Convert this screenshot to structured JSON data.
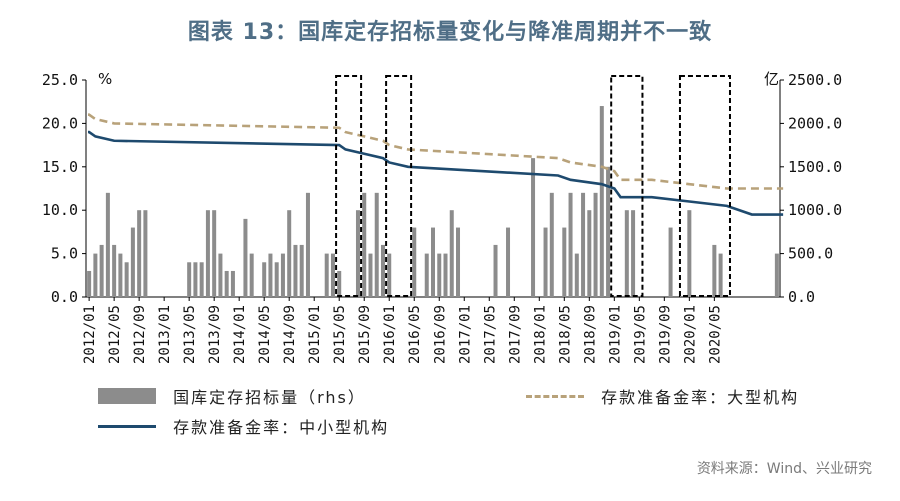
{
  "title": "图表 13：国库定存招标量变化与降准周期并不一致",
  "source": "资料来源：Wind、兴业研究",
  "chart_data": {
    "type": "bar",
    "left_unit": "%",
    "right_unit": "亿",
    "left_ylim": [
      0,
      25
    ],
    "right_ylim": [
      0,
      2500
    ],
    "left_ticks": [
      "0.0",
      "5.0",
      "10.0",
      "15.0",
      "20.0",
      "25.0"
    ],
    "right_ticks": [
      "0.0",
      "500.0",
      "1000.0",
      "1500.0",
      "2000.0",
      "2500.0"
    ],
    "x_tick_labels": [
      "2012/01",
      "2012/05",
      "2012/09",
      "2013/01",
      "2013/05",
      "2013/09",
      "2014/01",
      "2014/05",
      "2014/09",
      "2015/01",
      "2015/05",
      "2015/09",
      "2016/01",
      "2016/05",
      "2016/09",
      "2017/01",
      "2017/05",
      "2017/09",
      "2018/01",
      "2018/05",
      "2018/09",
      "2019/01",
      "2019/05",
      "2019/09",
      "2020/01",
      "2020/05"
    ],
    "months_start": "2012/01",
    "bars": {
      "name": "国库定存招标量（rhs）",
      "color": "#8c8c8c",
      "values": [
        300,
        500,
        600,
        1200,
        600,
        500,
        400,
        800,
        1000,
        1000,
        0,
        0,
        0,
        0,
        0,
        0,
        400,
        400,
        400,
        1000,
        1000,
        500,
        300,
        300,
        0,
        900,
        500,
        0,
        400,
        500,
        400,
        500,
        1000,
        600,
        600,
        1200,
        0,
        0,
        500,
        500,
        300,
        0,
        0,
        1000,
        1200,
        500,
        1200,
        600,
        500,
        0,
        0,
        0,
        800,
        0,
        500,
        800,
        500,
        500,
        1000,
        800,
        0,
        0,
        0,
        0,
        0,
        600,
        0,
        800,
        0,
        0,
        0,
        1600,
        0,
        800,
        1200,
        0,
        800,
        1200,
        500,
        1200,
        1000,
        1200,
        2200,
        1500,
        0,
        0,
        1000,
        1000,
        0,
        0,
        0,
        0,
        0,
        800,
        0,
        0,
        1000,
        0,
        0,
        0,
        600,
        500,
        0,
        0,
        0,
        0,
        0,
        0,
        0,
        0,
        500
      ]
    },
    "series": [
      {
        "name": "存款准备金率：大型机构",
        "color": "#b8a27a",
        "dashed": true,
        "steps": [
          [
            0,
            21.0
          ],
          [
            1,
            20.5
          ],
          [
            4,
            20.0
          ],
          [
            40,
            19.5
          ],
          [
            41,
            19.0
          ],
          [
            44,
            18.5
          ],
          [
            47,
            18.0
          ],
          [
            48,
            17.5
          ],
          [
            51,
            17.0
          ],
          [
            75,
            16.0
          ],
          [
            77,
            15.5
          ],
          [
            82,
            15.0
          ],
          [
            84,
            14.5
          ],
          [
            85,
            13.5
          ],
          [
            90,
            13.5
          ],
          [
            96,
            13.0
          ],
          [
            102,
            12.5
          ],
          [
            111,
            12.5
          ]
        ]
      },
      {
        "name": "存款准备金率：中小型机构",
        "color": "#1e4a6e",
        "dashed": false,
        "steps": [
          [
            0,
            19.0
          ],
          [
            1,
            18.5
          ],
          [
            4,
            18.0
          ],
          [
            40,
            17.5
          ],
          [
            41,
            17.0
          ],
          [
            44,
            16.5
          ],
          [
            47,
            16.0
          ],
          [
            48,
            15.5
          ],
          [
            51,
            15.0
          ],
          [
            75,
            14.0
          ],
          [
            77,
            13.5
          ],
          [
            82,
            13.0
          ],
          [
            84,
            12.5
          ],
          [
            85,
            11.5
          ],
          [
            90,
            11.5
          ],
          [
            96,
            11.0
          ],
          [
            102,
            10.5
          ],
          [
            106,
            9.5
          ],
          [
            111,
            9.5
          ]
        ]
      }
    ],
    "highlight_months": [
      [
        40,
        43
      ],
      [
        48,
        51
      ],
      [
        84,
        88
      ],
      [
        95,
        102
      ]
    ]
  }
}
